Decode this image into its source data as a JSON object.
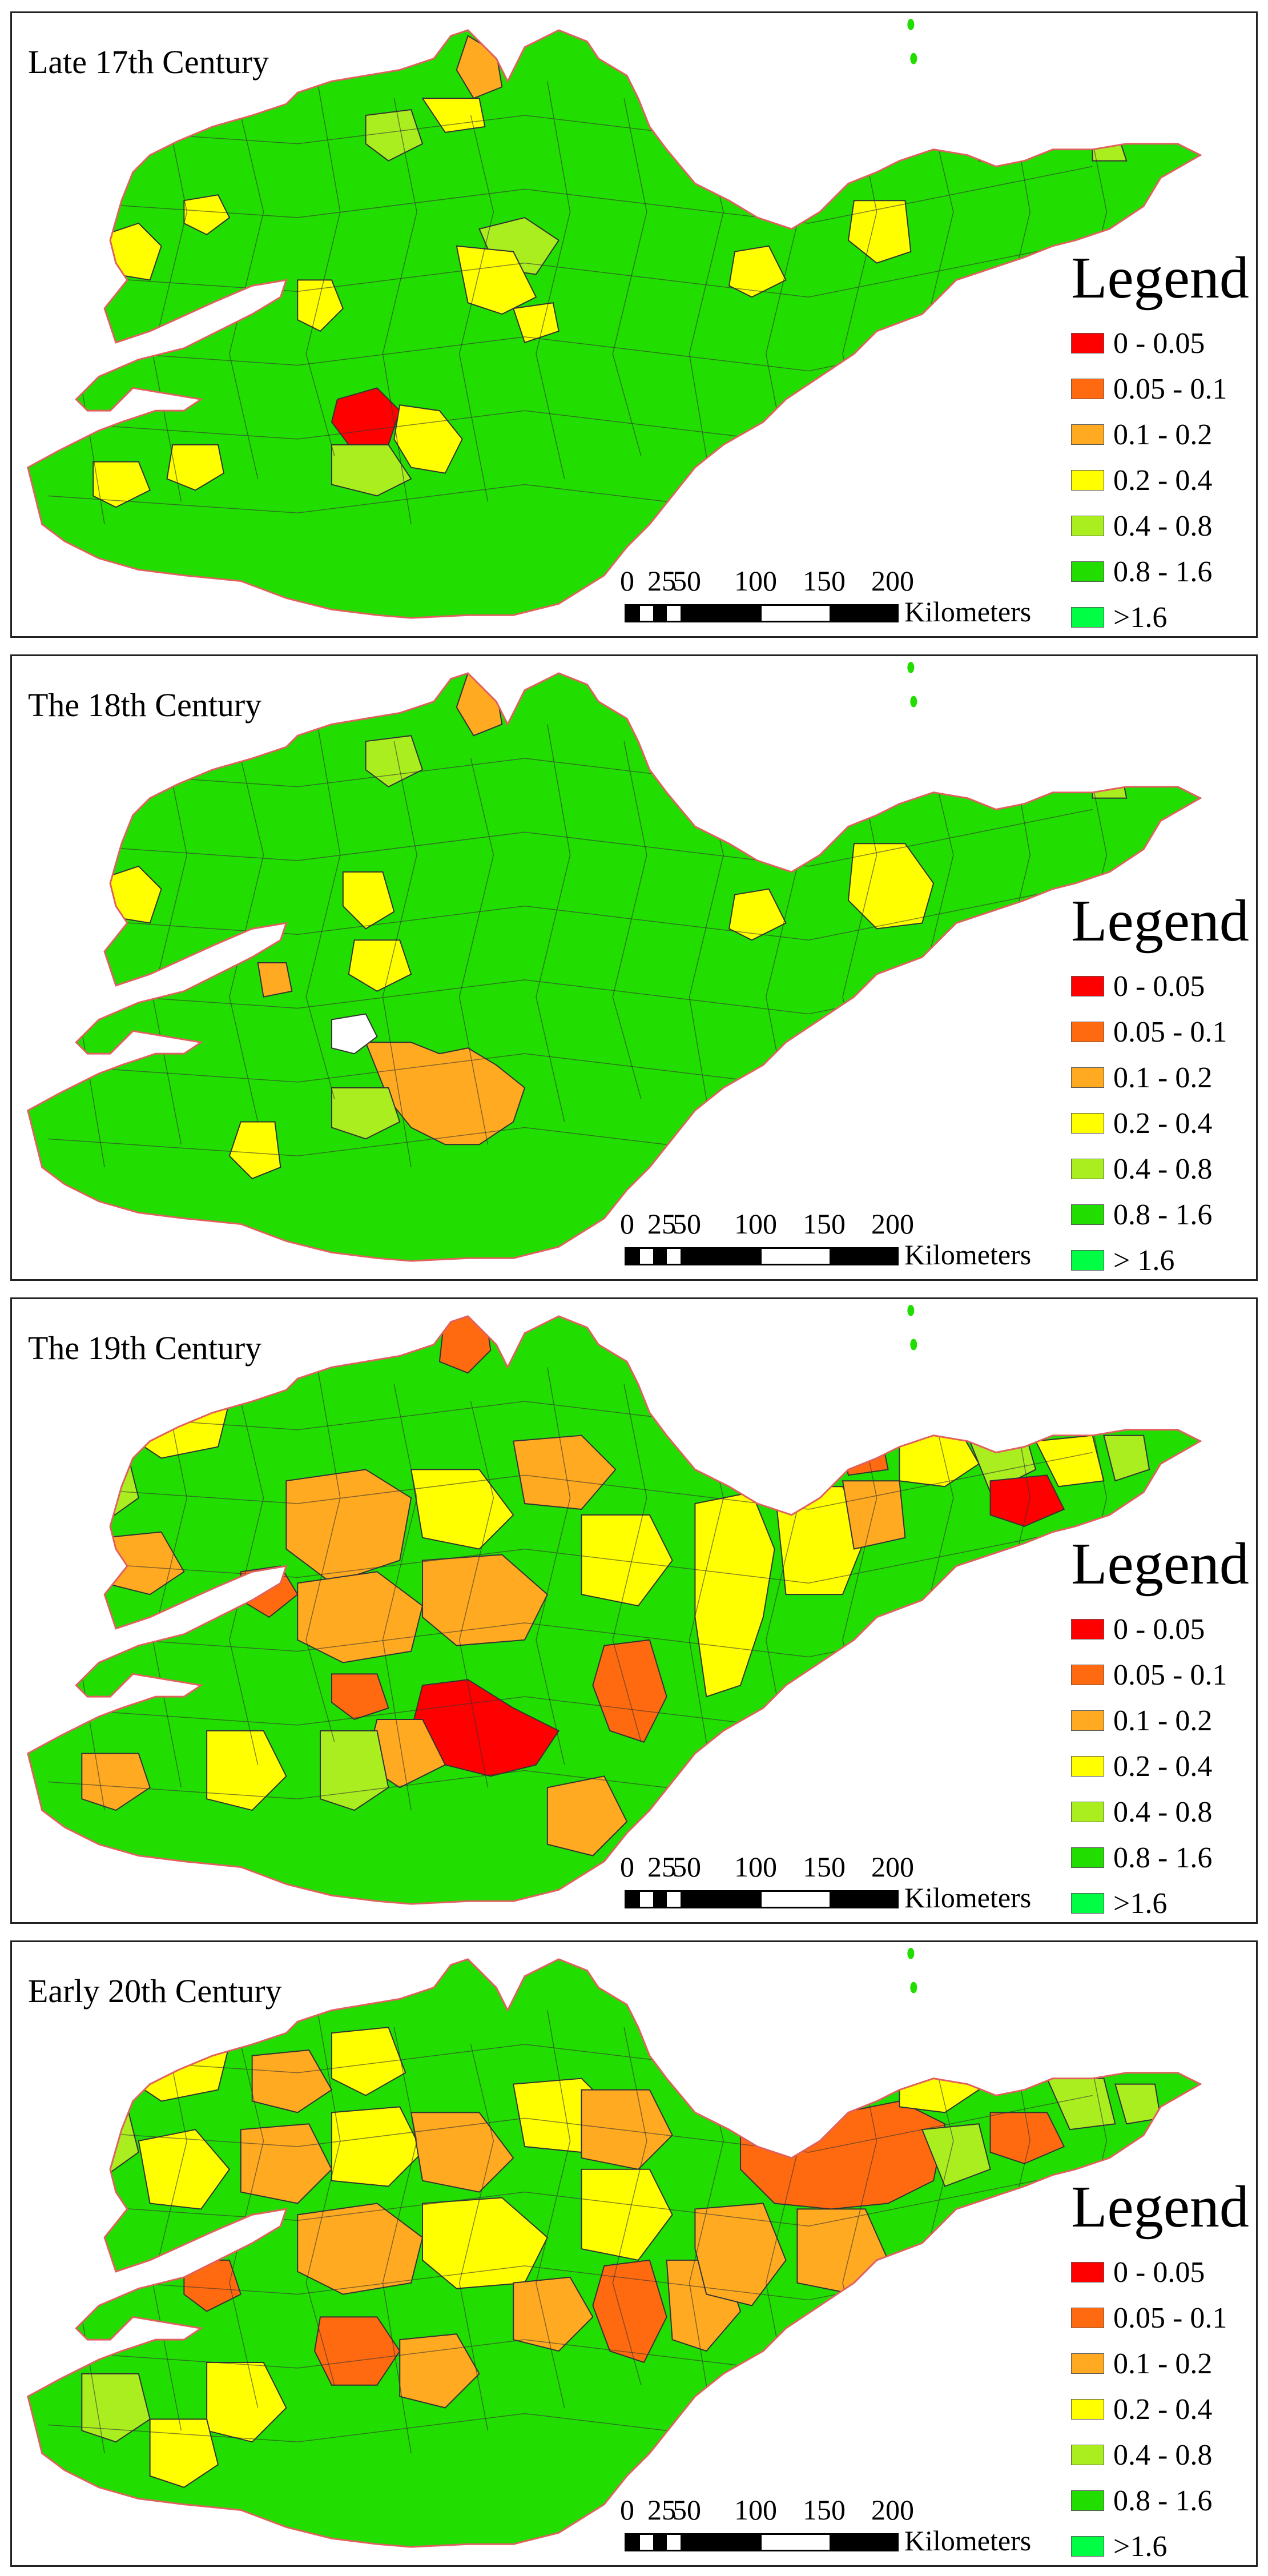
{
  "panels": [
    {
      "title": "Late 17th Century"
    },
    {
      "title": "The 18th Century"
    },
    {
      "title": "The 19th Century"
    },
    {
      "title": "Early 20th Century"
    }
  ],
  "legend": {
    "title": "Legend",
    "classes": [
      {
        "label": "0 - 0.05",
        "color": "#ff0000"
      },
      {
        "label": "0.05 - 0.1",
        "color": "#ff6a10"
      },
      {
        "label": "0.1 - 0.2",
        "color": "#ffaa20"
      },
      {
        "label": "0.2 - 0.4",
        "color": "#ffff00"
      },
      {
        "label": "0.4 - 0.8",
        "color": "#aaee20"
      },
      {
        "label": "0.8 - 1.6",
        "color": "#22dd00"
      },
      {
        "label": ">1.6",
        "color": "#00ff44"
      }
    ],
    "last_label_alt": "> 1.6"
  },
  "scale_bar": {
    "numbers": [
      "0",
      "25",
      "50",
      "100",
      "150",
      "200"
    ],
    "unit": "Kilometers"
  },
  "colors": {
    "boundary": "#333333",
    "coast_outline": "#e06060",
    "default_fill": "#22dd00"
  }
}
